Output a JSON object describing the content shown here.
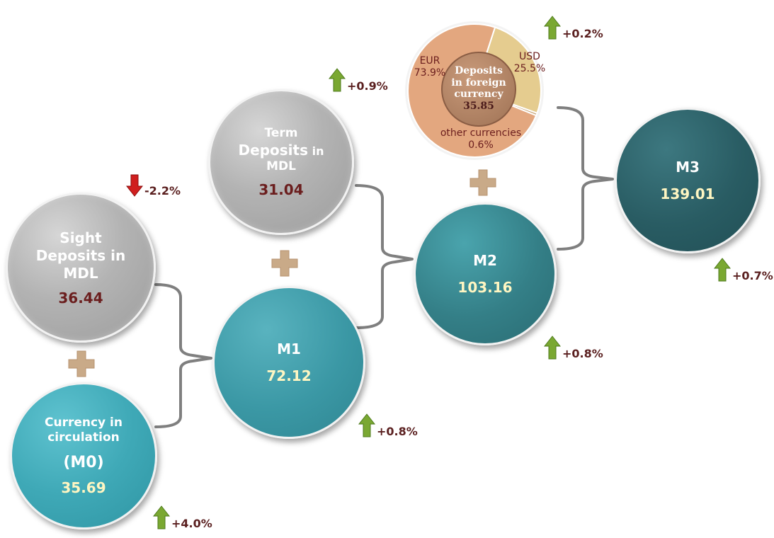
{
  "nodes": {
    "sight": {
      "label_line1": "Sight",
      "label_line2": "Deposits in",
      "label_line3": "MDL",
      "value": "36.44"
    },
    "term": {
      "label_line1": "Term",
      "label_line2a": "Deposits",
      "label_line2b": "in",
      "label_line3": "MDL",
      "value": "31.04"
    },
    "currency": {
      "label_line1": "Currency in",
      "label_line2": "circulation",
      "label_line3": "(M0)",
      "value": "35.69"
    },
    "m1": {
      "name": "M1",
      "value": "72.12"
    },
    "m2": {
      "name": "M2",
      "value": "103.16"
    },
    "m3": {
      "name": "M3",
      "value": "139.01"
    },
    "foreign": {
      "label_line1": "Deposits",
      "label_line2": "in foreign",
      "label_line3": "currency",
      "value": "35.85"
    }
  },
  "changes": {
    "sight": {
      "text": "-2.2%",
      "direction": "down"
    },
    "term": {
      "text": "+0.9%",
      "direction": "up"
    },
    "currency": {
      "text": "+4.0%",
      "direction": "up"
    },
    "m1": {
      "text": "+0.8%",
      "direction": "up"
    },
    "m2": {
      "text": "+0.8%",
      "direction": "up"
    },
    "m3": {
      "text": "+0.7%",
      "direction": "up"
    },
    "foreign": {
      "text": "+0.2%",
      "direction": "up"
    }
  },
  "foreign_breakdown": {
    "slices": [
      {
        "name": "EUR",
        "percent_label": "73.9%",
        "value": 73.9,
        "color": "#e3a77f"
      },
      {
        "name": "USD",
        "percent_label": "25.5%",
        "value": 25.5,
        "color": "#e5cc8f"
      },
      {
        "name": "other currencies",
        "percent_label": "0.6%",
        "value": 0.6,
        "color": "#c9a67a"
      }
    ]
  },
  "colors": {
    "up_arrow": "#7aa832",
    "down_arrow": "#d01f1f",
    "plus_sign": "#c9aa88",
    "bracket": "#7f7f7f"
  }
}
